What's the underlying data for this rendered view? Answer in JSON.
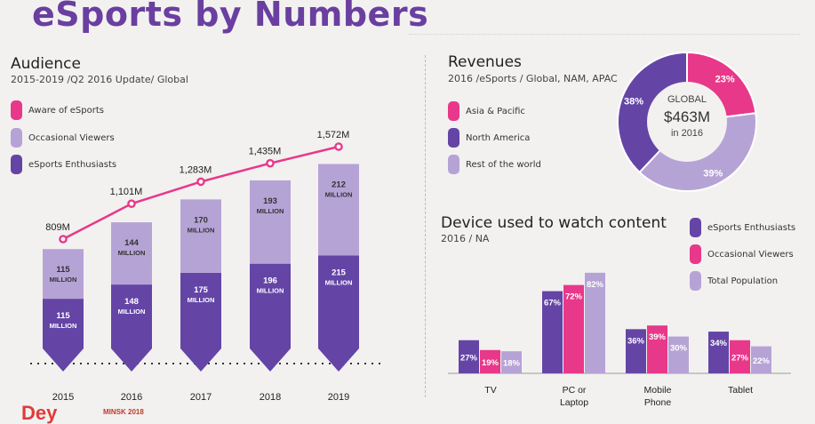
{
  "title": "eSports by Numbers",
  "colors": {
    "pink": "#e8388a",
    "dark_purple": "#6445a6",
    "light_purple": "#b6a3d6",
    "title_purple": "#6a3fa0"
  },
  "audience": {
    "heading": "Audience",
    "subtitle": "2015-2019 /Q2 2016 Update/ Global",
    "legend": [
      {
        "label": "Aware of eSports",
        "color": "#e8388a"
      },
      {
        "label": "Occasional Viewers",
        "color": "#b6a3d6"
      },
      {
        "label": "eSports Enthusiasts",
        "color": "#6445a6"
      }
    ]
  },
  "revenues": {
    "heading": "Revenues",
    "subtitle": "2016 /eSports / Global, NAM, APAC",
    "legend": [
      {
        "label": "Asia & Pacific",
        "color": "#e8388a"
      },
      {
        "label": "North America",
        "color": "#6445a6"
      },
      {
        "label": "Rest of the world",
        "color": "#b6a3d6"
      }
    ],
    "center": {
      "line1": "GLOBAL",
      "line2": "$463M",
      "line3": "in 2016"
    }
  },
  "device": {
    "heading": "Device used to watch content",
    "subtitle": "2016 / NA",
    "legend": [
      {
        "label": "eSports Enthusiasts",
        "color": "#6445a6"
      },
      {
        "label": "Occasional Viewers",
        "color": "#e8388a"
      },
      {
        "label": "Total Population",
        "color": "#b6a3d6"
      }
    ]
  },
  "footer": {
    "brand": "Dey",
    "event": "MINSK 2018"
  },
  "chart_data": [
    {
      "type": "bar",
      "stacked": true,
      "categories": [
        "2015",
        "2016",
        "2017",
        "2018",
        "2019"
      ],
      "series": [
        {
          "name": "eSports Enthusiasts",
          "color": "#6445a6",
          "values": [
            115,
            148,
            175,
            196,
            215
          ],
          "labels": [
            "115 MILLION",
            "148 MILLION",
            "175 MILLION",
            "196 MILLION",
            "215 MILLION"
          ]
        },
        {
          "name": "Occasional Viewers",
          "color": "#b6a3d6",
          "values": [
            115,
            144,
            170,
            193,
            212
          ],
          "labels": [
            "115 MILLION",
            "144 MILLION",
            "170 MILLION",
            "193 MILLION",
            "212 MILLION"
          ]
        }
      ],
      "line": {
        "name": "Aware of eSports",
        "color": "#e8388a",
        "values": [
          809,
          1101,
          1283,
          1435,
          1572
        ],
        "labels": [
          "809M",
          "1,101M",
          "1,283M",
          "1,435M",
          "1,572M"
        ]
      }
    },
    {
      "type": "pie",
      "donut": true,
      "slices": [
        {
          "name": "Asia & Pacific",
          "value": 23,
          "label": "23%",
          "color": "#e8388a"
        },
        {
          "name": "Rest of the world",
          "value": 39,
          "label": "39%",
          "color": "#b6a3d6"
        },
        {
          "name": "North America",
          "value": 38,
          "label": "38%",
          "color": "#6445a6"
        }
      ]
    },
    {
      "type": "bar",
      "categories": [
        "TV",
        "PC or\nLaptop",
        "Mobile\nPhone",
        "Tablet"
      ],
      "series": [
        {
          "name": "eSports Enthusiasts",
          "color": "#6445a6",
          "values": [
            27,
            67,
            36,
            34
          ]
        },
        {
          "name": "Occasional Viewers",
          "color": "#e8388a",
          "values": [
            19,
            72,
            39,
            27
          ]
        },
        {
          "name": "Total Population",
          "color": "#b6a3d6",
          "values": [
            18,
            82,
            30,
            22
          ]
        }
      ]
    }
  ]
}
